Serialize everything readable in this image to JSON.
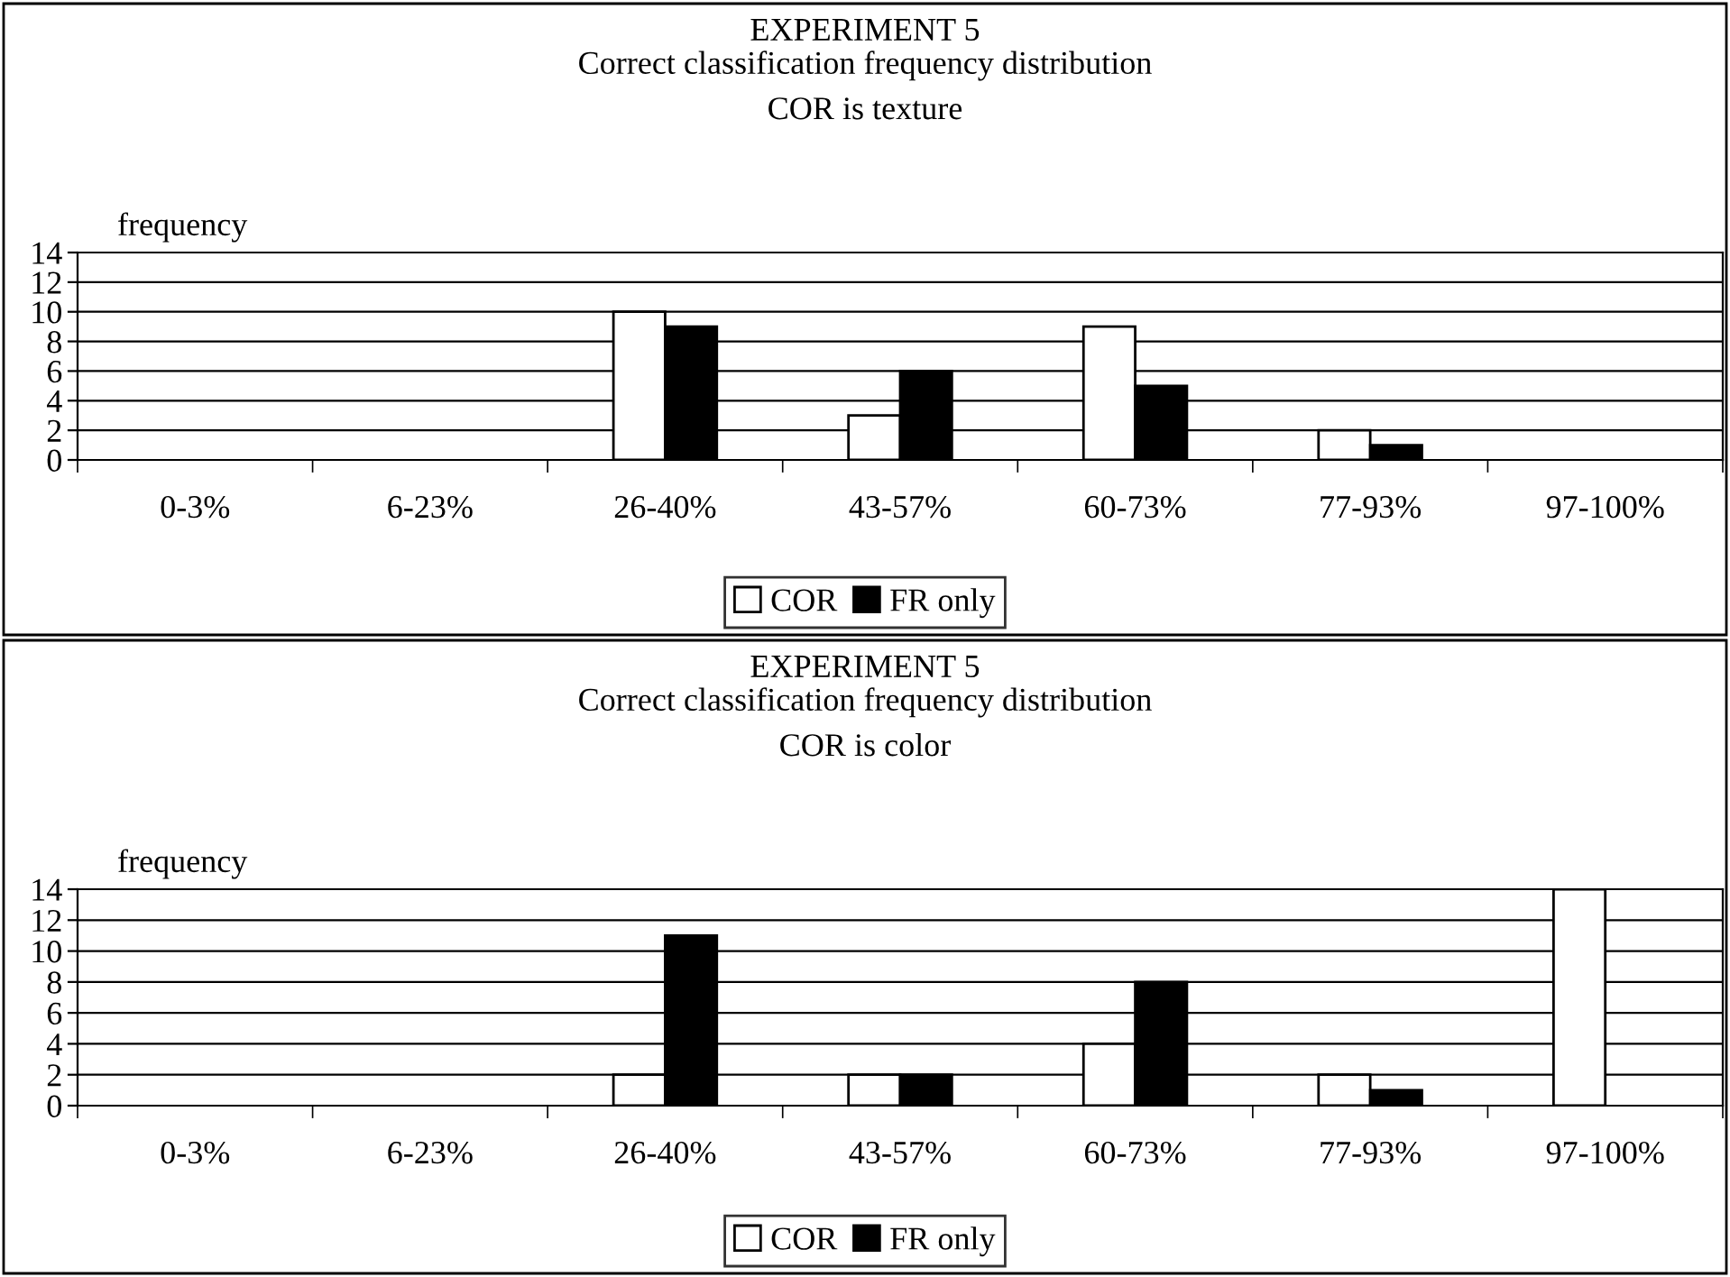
{
  "chart_data": [
    {
      "type": "bar",
      "title": "EXPERIMENT 5",
      "subtitle": "Correct classification frequency distribution\nCOR is texture",
      "ylabel": "frequency",
      "categories": [
        "0-3%",
        "6-23%",
        "26-40%",
        "43-57%",
        "60-73%",
        "77-93%",
        "97-100%"
      ],
      "series": [
        {
          "name": "COR",
          "color": "#ffffff",
          "values": [
            0,
            0,
            10,
            3,
            9,
            2,
            0
          ]
        },
        {
          "name": "FR only",
          "color": "#000000",
          "values": [
            0,
            0,
            9,
            6,
            5,
            1,
            0
          ]
        }
      ],
      "ylim": [
        0,
        14
      ],
      "yticks": [
        0,
        2,
        4,
        6,
        8,
        10,
        12,
        14
      ],
      "grid": "y",
      "legend": "bottom"
    },
    {
      "type": "bar",
      "title": "EXPERIMENT 5",
      "subtitle": "Correct classification frequency distribution\nCOR is color",
      "ylabel": "frequency",
      "categories": [
        "0-3%",
        "6-23%",
        "26-40%",
        "43-57%",
        "60-73%",
        "77-93%",
        "97-100%"
      ],
      "series": [
        {
          "name": "COR",
          "color": "#ffffff",
          "values": [
            0,
            0,
            2,
            2,
            4,
            2,
            14
          ]
        },
        {
          "name": "FR only",
          "color": "#000000",
          "values": [
            0,
            0,
            11,
            2,
            8,
            1,
            0
          ]
        }
      ],
      "ylim": [
        0,
        14
      ],
      "yticks": [
        0,
        2,
        4,
        6,
        8,
        10,
        12,
        14
      ],
      "grid": "y",
      "legend": "bottom"
    }
  ]
}
